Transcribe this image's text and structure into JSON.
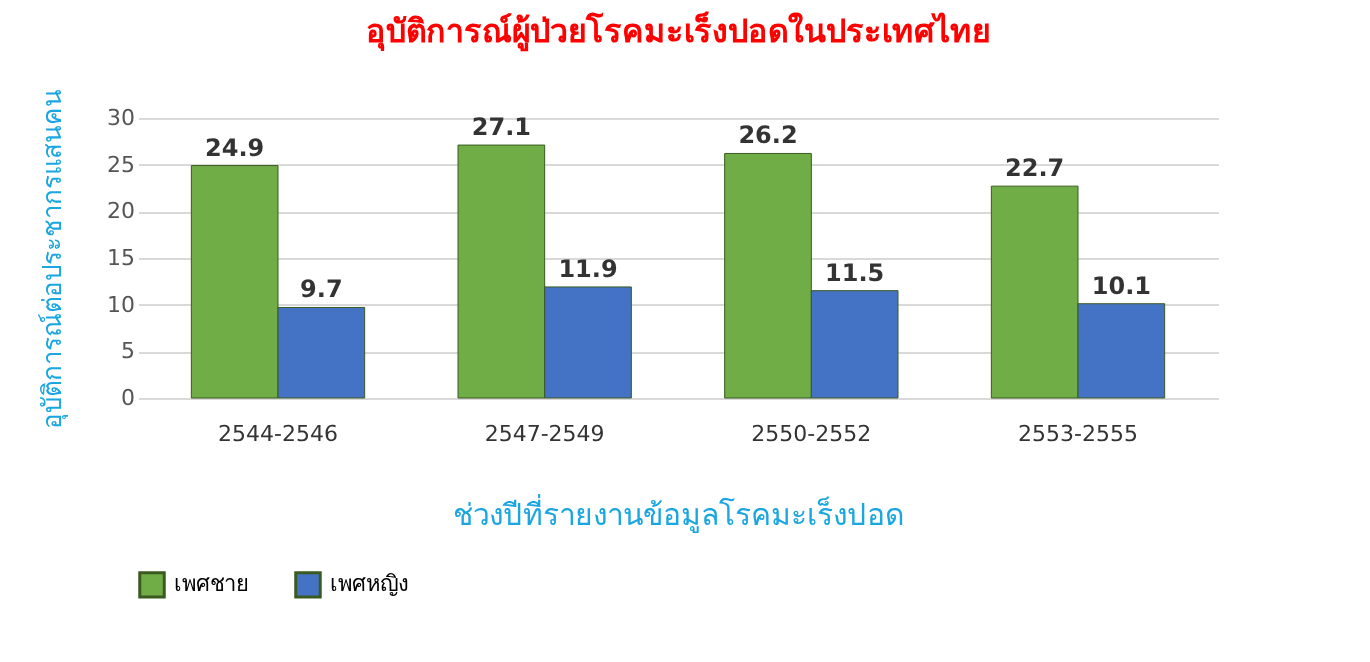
{
  "chart_data": {
    "type": "bar",
    "title": "อุบัติการณ์ผู้ป่วยโรคมะเร็งปอดในประเทศไทย",
    "xlabel": "ช่วงปีที่รายงานข้อมูลโรคมะเร็งปอด",
    "ylabel": "อุบัติการณ์ต่อประชากรแสนคน",
    "categories": [
      "2544-2546",
      "2547-2549",
      "2550-2552",
      "2553-2555"
    ],
    "series": [
      {
        "name": "เพศชาย",
        "color": "#70ad47",
        "values": [
          24.9,
          27.1,
          26.2,
          22.7
        ]
      },
      {
        "name": "เพศหญิง",
        "color": "#4472c4",
        "values": [
          9.7,
          11.9,
          11.5,
          10.1
        ]
      }
    ],
    "ylim": [
      0,
      30
    ],
    "yticks": [
      0,
      5,
      10,
      15,
      20,
      25,
      30
    ],
    "grid": "y",
    "legend": "bottom",
    "data_labels": true
  }
}
